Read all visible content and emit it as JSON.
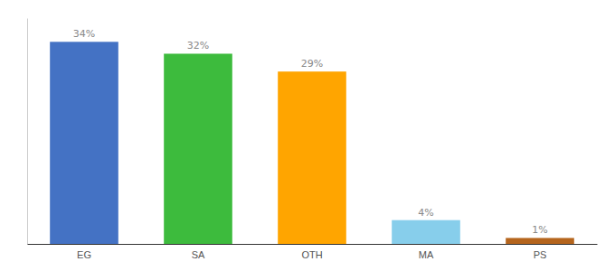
{
  "chart_data": {
    "type": "bar",
    "categories": [
      "EG",
      "SA",
      "OTH",
      "MA",
      "PS"
    ],
    "values": [
      34,
      32,
      29,
      4,
      1
    ],
    "value_labels": [
      "34%",
      "32%",
      "29%",
      "4%",
      "1%"
    ],
    "colors": [
      "#4472c4",
      "#3dbb3d",
      "#ffa500",
      "#87ceeb",
      "#b5651d"
    ],
    "ylim": [
      0,
      38
    ],
    "grid": false,
    "data_labels": true,
    "tick_labels": "x"
  }
}
